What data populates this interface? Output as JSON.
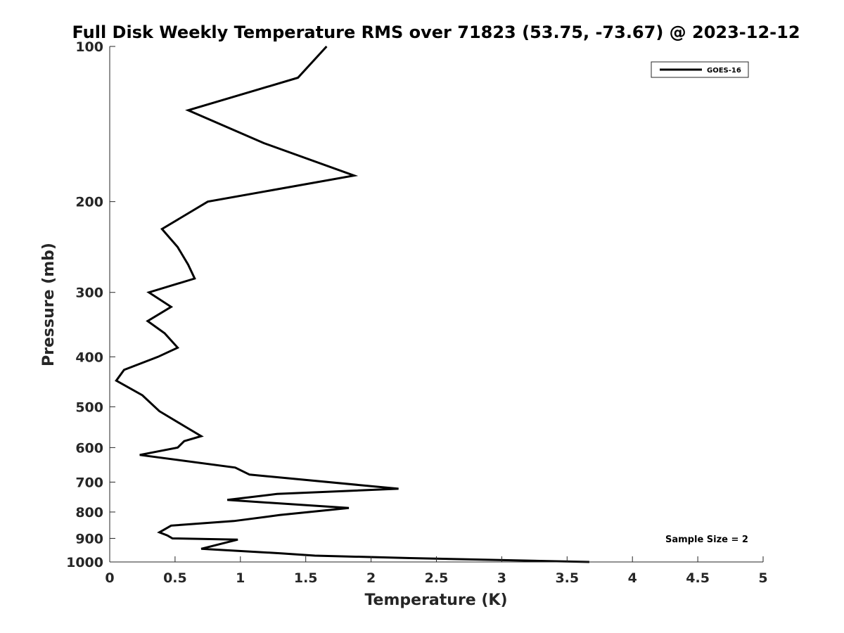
{
  "chart_data": {
    "type": "line",
    "title": "Full Disk Weekly Temperature RMS over 71823 (53.75, -73.67) @ 2023-12-12",
    "xlabel": "Temperature (K)",
    "ylabel": "Pressure (mb)",
    "xlim": [
      0,
      5
    ],
    "ylim": [
      100,
      1000
    ],
    "yscale": "log",
    "y_reversed": true,
    "x_ticks": [
      0,
      0.5,
      1,
      1.5,
      2,
      2.5,
      3,
      3.5,
      4,
      4.5,
      5
    ],
    "x_tick_labels": [
      "0",
      "0.5",
      "1",
      "1.5",
      "2",
      "2.5",
      "3",
      "3.5",
      "4",
      "4.5",
      "5"
    ],
    "y_ticks": [
      100,
      200,
      300,
      400,
      500,
      600,
      700,
      800,
      900,
      1000
    ],
    "y_tick_labels": [
      "100",
      "200",
      "300",
      "400",
      "500",
      "600",
      "700",
      "800",
      "900",
      "1000"
    ],
    "legend_position": "top-right",
    "annotation": "Sample Size = 2",
    "series": [
      {
        "name": "GOES-16",
        "color": "#000000",
        "x": [
          1.66,
          1.44,
          0.6,
          1.18,
          1.87,
          0.75,
          0.4,
          0.52,
          0.6,
          0.65,
          0.3,
          0.47,
          0.29,
          0.42,
          0.52,
          0.37,
          0.11,
          0.05,
          0.25,
          0.38,
          0.58,
          0.7,
          0.57,
          0.52,
          0.23,
          0.96,
          1.07,
          2.21,
          1.28,
          0.9,
          1.83,
          1.3,
          0.95,
          0.47,
          0.38,
          0.44,
          0.48,
          0.98,
          0.7,
          1.31,
          1.57,
          2.3,
          3.67
        ],
        "y": [
          100,
          115,
          133,
          154,
          178,
          200,
          226,
          245,
          265,
          282,
          300,
          320,
          341,
          360,
          384,
          400,
          424,
          445,
          475,
          510,
          547,
          570,
          583,
          600,
          620,
          656,
          677,
          721,
          738,
          758,
          786,
          811,
          833,
          850,
          876,
          888,
          900,
          905,
          943,
          962,
          972,
          983,
          1000
        ]
      }
    ]
  }
}
